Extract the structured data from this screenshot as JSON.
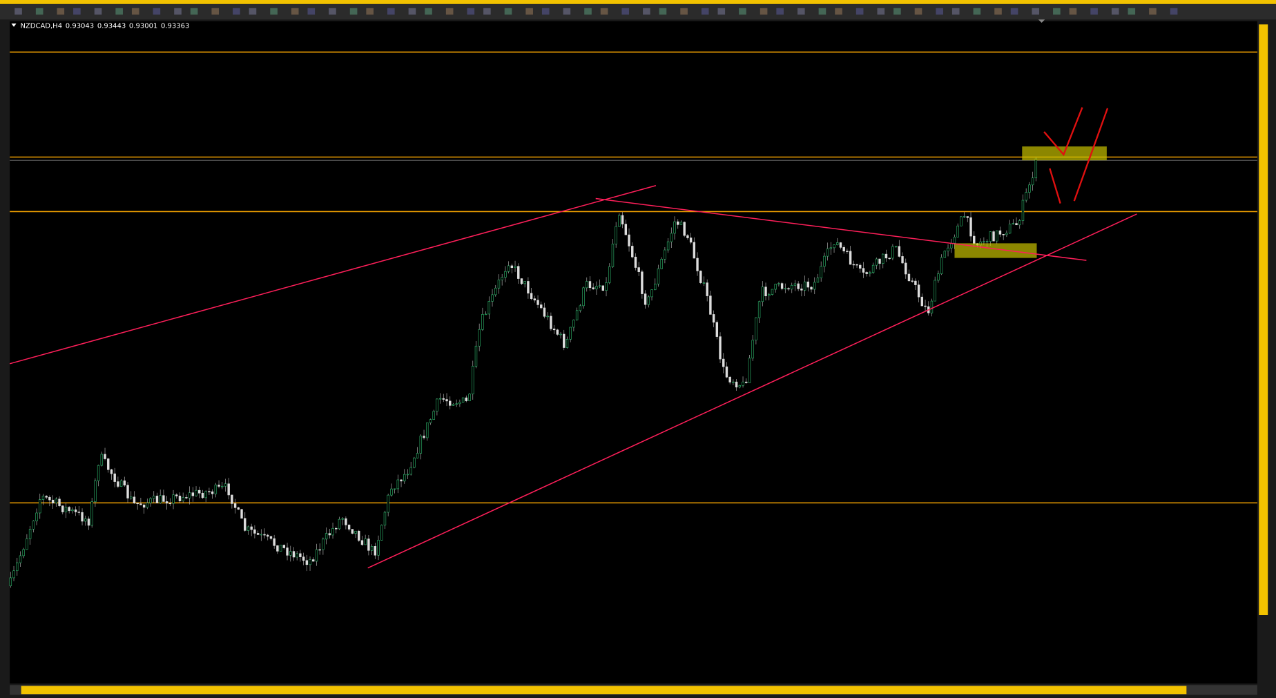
{
  "window": {
    "symbol": "NZDCAD,H4",
    "open": "0.93043",
    "high": "0.93443",
    "low": "0.93001",
    "close": "0.93363"
  }
}
